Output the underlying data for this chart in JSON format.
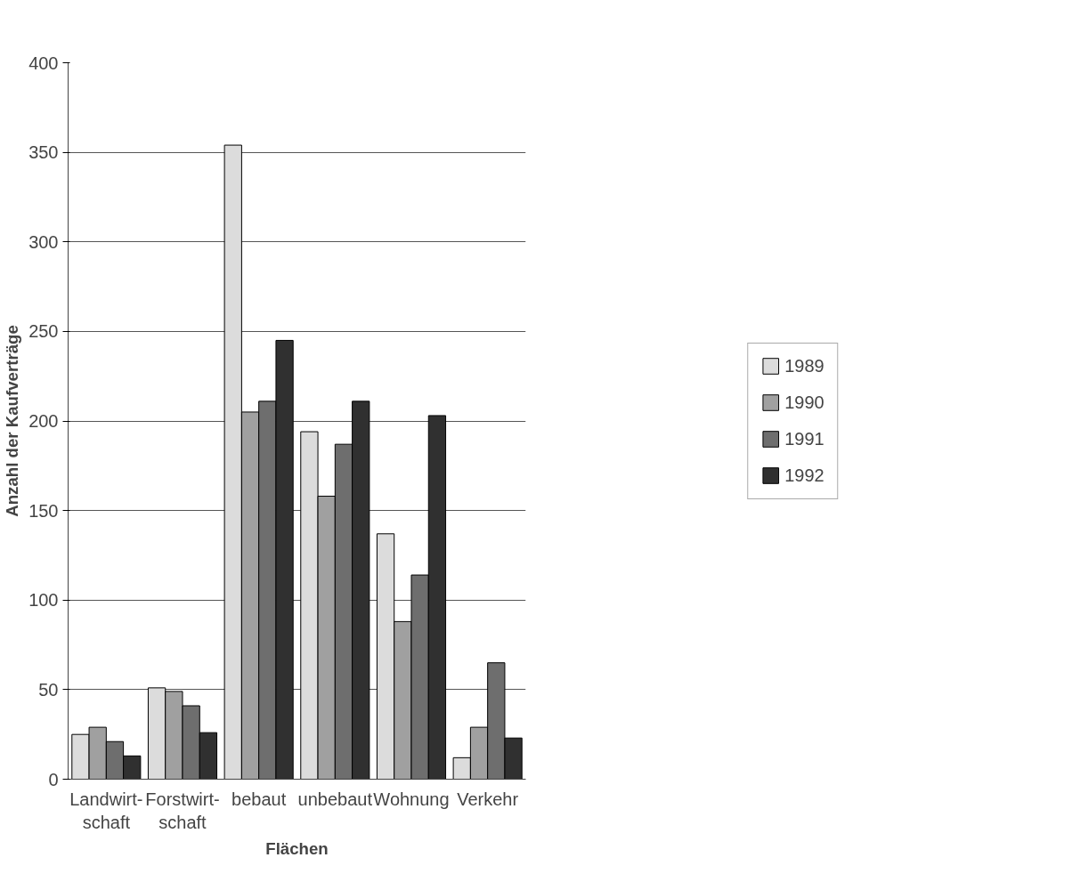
{
  "chart_data": {
    "type": "bar",
    "xlabel": "Flächen",
    "ylabel": "Anzahl der Kaufverträge",
    "categories": [
      "Landwirt-\nschaft",
      "Forstwirt-\nschaft",
      "bebaut",
      "unbebaut",
      "Wohnung",
      "Verkehr"
    ],
    "series": [
      {
        "name": "1989",
        "color": "#dcdcdc",
        "values": [
          25,
          51,
          354,
          194,
          137,
          12
        ]
      },
      {
        "name": "1990",
        "color": "#a0a0a0",
        "values": [
          29,
          49,
          205,
          158,
          88,
          29
        ]
      },
      {
        "name": "1991",
        "color": "#6e6e6e",
        "values": [
          21,
          41,
          211,
          187,
          114,
          65
        ]
      },
      {
        "name": "1992",
        "color": "#303030",
        "values": [
          13,
          26,
          245,
          211,
          203,
          23
        ]
      }
    ],
    "ylim": [
      0,
      400
    ],
    "yticks": [
      0,
      50,
      100,
      150,
      200,
      250,
      300,
      350,
      400
    ],
    "grid": "y",
    "legend": "right"
  }
}
